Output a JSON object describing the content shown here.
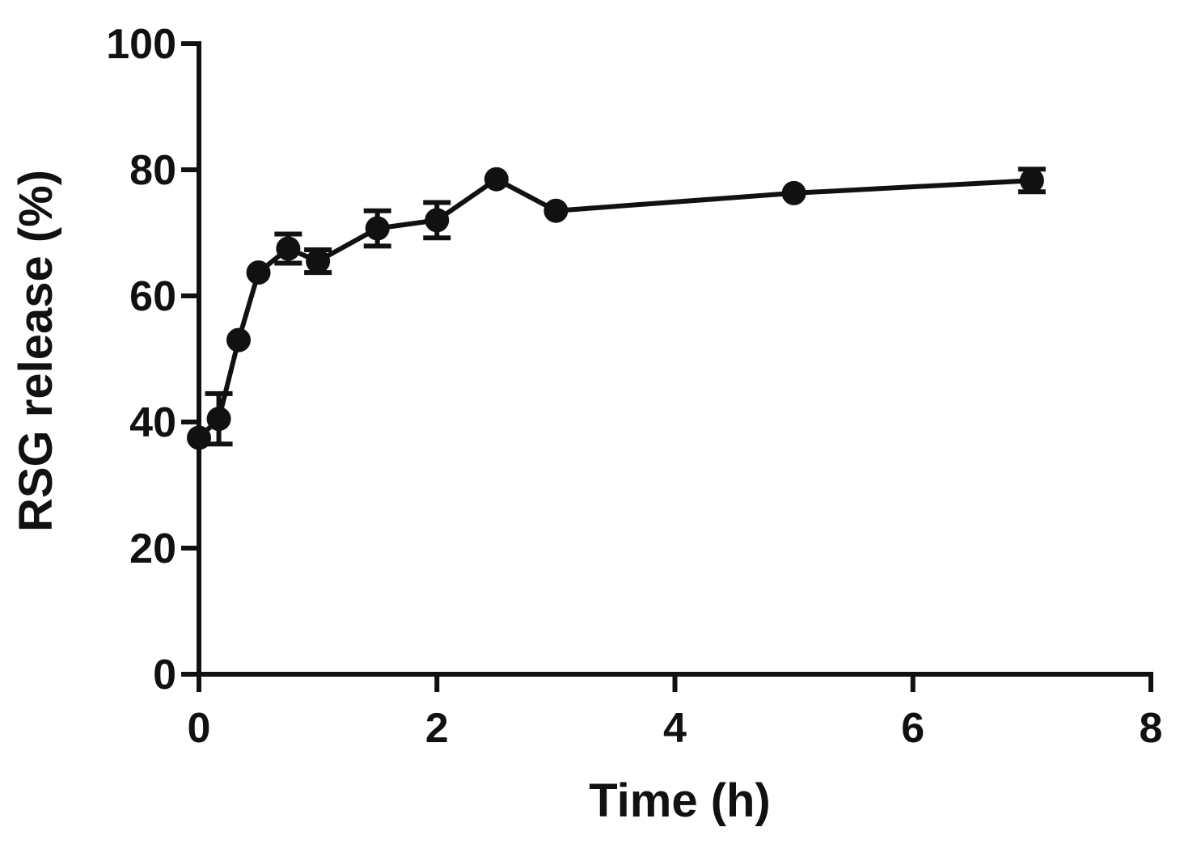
{
  "chart_data": {
    "type": "line",
    "title": "",
    "xlabel": "Time (h)",
    "ylabel": "RSG release (%)",
    "xlim": [
      0,
      8
    ],
    "ylim": [
      0,
      100
    ],
    "x_ticks": [
      0,
      2,
      4,
      6,
      8
    ],
    "y_ticks": [
      0,
      20,
      40,
      60,
      80,
      100
    ],
    "x_tick_labels": [
      "0",
      "2",
      "4",
      "6",
      "8"
    ],
    "y_tick_labels": [
      "0",
      "20",
      "40",
      "60",
      "80",
      "100"
    ],
    "grid": false,
    "legend": "none",
    "colors": {
      "series": "#111111"
    },
    "series": [
      {
        "x": [
          0,
          0.167,
          0.333,
          0.5,
          0.75,
          1.0,
          1.5,
          2.0,
          2.5,
          3.0,
          5.0,
          7.0
        ],
        "y": [
          37.5,
          40.5,
          53.0,
          63.7,
          67.5,
          65.5,
          70.7,
          72.0,
          78.5,
          73.5,
          76.3,
          78.3
        ],
        "err": [
          0,
          4.0,
          0,
          0,
          2.3,
          1.8,
          2.8,
          2.8,
          0,
          0,
          0,
          1.8
        ]
      }
    ]
  }
}
